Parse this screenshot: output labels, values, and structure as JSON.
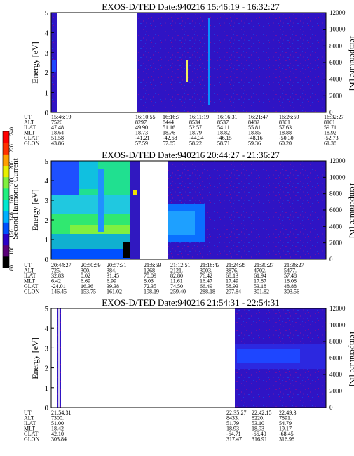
{
  "chart_data": [
    {
      "type": "heatmap",
      "title": "EXOS-D/TED   Date:940216  15:46:19 - 16:32:27",
      "ylabel": "Energy [eV]",
      "y2label": "Temperature [K]",
      "ylim": [
        0,
        5
      ],
      "y2lim": [
        0,
        12000
      ],
      "yticks": [
        "0",
        "1",
        "2",
        "3",
        "4",
        "5"
      ],
      "y2ticks": [
        "0",
        "2000",
        "4000",
        "6000",
        "8000",
        "10000",
        "12000"
      ],
      "table": {
        "labels": [
          "UT",
          "ALT",
          "ILAT",
          "MLT",
          "GLAT",
          "GLON"
        ],
        "columns": [
          [
            "15:46:19",
            "7526",
            "47.48",
            "18.64",
            "51.58",
            "43.86"
          ],
          [
            "16:10:55",
            "8297",
            "49.90",
            "18.73",
            "-41.21",
            "57.59"
          ],
          [
            "16:16:7",
            "8444",
            "51.16",
            "18.76",
            "-42.68",
            "57.85"
          ],
          [
            "16:11:19",
            "8534",
            "52.57",
            "18.79",
            "-44.34",
            "58.22"
          ],
          [
            "16:16:31",
            "8537",
            "54.11",
            "18.82",
            "-46.15",
            "58.71"
          ],
          [
            "16:21:47",
            "8482",
            "55.81",
            "18.85",
            "-48.16",
            "59.36"
          ],
          [
            "16:26:59",
            "8361",
            "57.63",
            "18.88",
            "-50.30",
            "60.20"
          ],
          [
            "16:32:27",
            "8161",
            "59.71",
            "18.92",
            "-52.73",
            "61.38"
          ]
        ]
      }
    },
    {
      "type": "heatmap",
      "title": "EXOS-D/TED   Date:940216  20:44:27 - 21:36:27",
      "ylabel": "Energy [eV]",
      "y2label": "Temperature [K]",
      "ylim": [
        0,
        5
      ],
      "y2lim": [
        0,
        12000
      ],
      "yticks": [
        "0",
        "1",
        "2",
        "3",
        "4",
        "5"
      ],
      "y2ticks": [
        "0",
        "2000",
        "4000",
        "6000",
        "8000",
        "10000",
        "12000"
      ],
      "table": {
        "labels": [
          "UT",
          "ALT",
          "ILAT",
          "MLT",
          "GLAT",
          "GLON"
        ],
        "columns": [
          [
            "20:44:27",
            "725.",
            "32.83",
            "6.42",
            "-24.01",
            "146.45"
          ],
          [
            "20:50:59",
            "300.",
            "0.02",
            "6.69",
            "16.36",
            "153.75"
          ],
          [
            "20:57:31",
            "384.",
            "31.45",
            "6.99",
            "39.38",
            "161.02"
          ],
          [
            "21:6:59",
            "1268",
            "70.09",
            "8.03",
            "72.35",
            "198.19"
          ],
          [
            "21:12:51",
            "2121.",
            "82.80",
            "11.61",
            "74.50",
            "259.40"
          ],
          [
            "21:18:43",
            "3003.",
            "76.42",
            "16.47",
            "66.49",
            "288.18"
          ],
          [
            "21:24:35",
            "3876.",
            "68.13",
            "17.49",
            "58.93",
            "297.84"
          ],
          [
            "21:30:27",
            "4702.",
            "61.94",
            "17.87",
            "53.18",
            "301.82"
          ],
          [
            "21:36:27",
            "5477.",
            "57.48",
            "18.08",
            "48.88",
            "303.56"
          ]
        ]
      }
    },
    {
      "type": "heatmap",
      "title": "EXOS-D/TED   Date:940216  21:54:31 - 22:54:31",
      "ylabel": "Energy [eV]",
      "y2label": "Temperature [K]",
      "ylim": [
        0,
        5
      ],
      "y2lim": [
        0,
        12000
      ],
      "yticks": [
        "0",
        "1",
        "2",
        "3",
        "4",
        "5"
      ],
      "y2ticks": [
        "0",
        "2000",
        "4000",
        "6000",
        "8000",
        "10000",
        "12000"
      ],
      "table": {
        "labels": [
          "UT",
          "ALT",
          "ILAT",
          "MLT",
          "GLAT",
          "GLON"
        ],
        "columns": [
          [
            "21:54:31",
            "7300.",
            "51.00",
            "18.42",
            "42.10",
            "303.84"
          ],
          [
            "22:35:27",
            "8433.",
            "51.79",
            "18.93",
            "-64.71",
            "317.47"
          ],
          [
            "22:42:15",
            "8220.",
            "53.10",
            "18.93",
            "-66.40",
            "316.91"
          ],
          [
            "22:49:3",
            "7891.",
            "54.79",
            "19.17",
            "-68.45",
            "316.98"
          ]
        ]
      }
    }
  ],
  "colorbar": {
    "label": "Second Harmonic Current",
    "ticks": [
      "80",
      "100",
      "120",
      "140",
      "160",
      "180",
      "200",
      "220",
      "240"
    ],
    "colors": [
      "#000000",
      "#5a0078",
      "#2b00c8",
      "#0050ff",
      "#00b0ff",
      "#00e8d0",
      "#20f080",
      "#80f040",
      "#e8f000",
      "#ffa000",
      "#ff3000",
      "#ff0000"
    ]
  }
}
